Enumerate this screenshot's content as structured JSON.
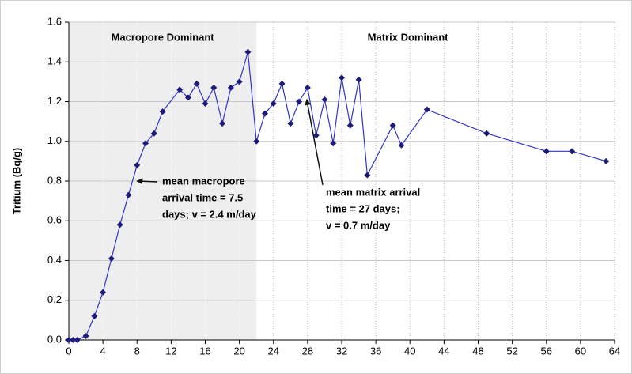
{
  "chart_data": {
    "type": "line",
    "ylabel": "Tritium (Bq/g)",
    "xlim": [
      0,
      64
    ],
    "xticks": [
      0,
      4,
      8,
      12,
      16,
      20,
      24,
      28,
      32,
      36,
      40,
      44,
      48,
      52,
      56,
      60,
      64
    ],
    "ylim": [
      0,
      1.6
    ],
    "yticks": [
      {
        "value": 0,
        "label": "0.0"
      },
      0.2,
      0.4,
      0.6,
      0.8,
      {
        "value": 1,
        "label": "1.0"
      },
      1.2,
      1.4,
      1.6
    ],
    "grid": true,
    "regions": [
      {
        "label": "Macropore Dominant",
        "x": [
          0,
          22
        ],
        "color": "#eeeeee"
      },
      {
        "label": "Matrix Dominant",
        "x": [
          22,
          64
        ]
      }
    ],
    "series": [
      {
        "color": "#3333cc",
        "marker_color": "#1c1c7a",
        "x": [
          0,
          0.5,
          1,
          2,
          3,
          4,
          5,
          6,
          7,
          8,
          9,
          10,
          11,
          13,
          14,
          15,
          16,
          17,
          18,
          19,
          20,
          21,
          22,
          23,
          24,
          25,
          26,
          27,
          28,
          29,
          30,
          31,
          32,
          33,
          34,
          35,
          38,
          39,
          42,
          49,
          56,
          59,
          63
        ],
        "values": [
          0,
          0,
          0,
          0.02,
          0.12,
          0.24,
          0.41,
          0.58,
          0.73,
          0.88,
          0.99,
          1.04,
          1.15,
          1.26,
          1.22,
          1.29,
          1.19,
          1.27,
          1.09,
          1.27,
          1.3,
          1.45,
          1.0,
          1.14,
          1.19,
          1.29,
          1.09,
          1.2,
          1.27,
          1.03,
          1.21,
          0.99,
          1.32,
          1.08,
          1.31,
          0.83,
          1.08,
          0.98,
          1.16,
          1.04,
          0.95,
          0.95,
          0.9
        ]
      }
    ],
    "annotations": [
      {
        "lines": [
          "mean macropore",
          "arrival time = 7.5",
          "days; v = 2.4 m/day"
        ],
        "xy": [
          8,
          0.8
        ]
      },
      {
        "lines": [
          "mean matrix arrival",
          "time = 27 days;",
          "v = 0.7 m/day"
        ],
        "xy": [
          27.9,
          1.21
        ]
      }
    ]
  }
}
